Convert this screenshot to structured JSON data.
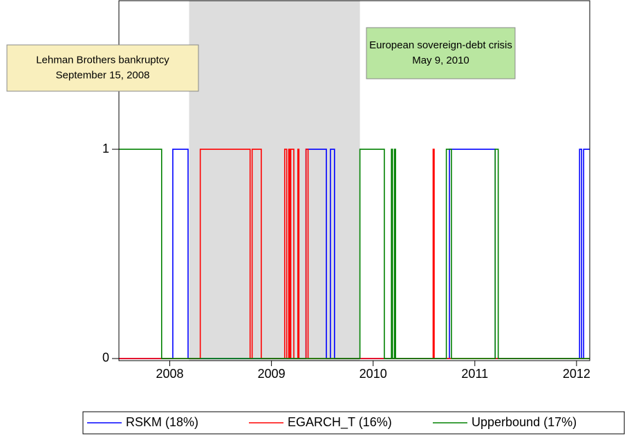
{
  "chart_data": {
    "type": "step",
    "xlim": [
      2008.0,
      2012.63
    ],
    "ylim": [
      -0.01,
      1.71
    ],
    "xticks": [
      {
        "value": 2008.5,
        "label": "2008"
      },
      {
        "value": 2009.5,
        "label": "2009"
      },
      {
        "value": 2010.5,
        "label": "2010"
      },
      {
        "value": 2011.5,
        "label": "2011"
      },
      {
        "value": 2012.5,
        "label": "2012"
      }
    ],
    "yticks": [
      0,
      1
    ],
    "shaded_region": [
      2008.69,
      2010.37
    ],
    "annotations": [
      {
        "lines": [
          "Lehman Brothers bankruptcy",
          "September 15, 2008"
        ],
        "color": "#f9efbd"
      },
      {
        "lines": [
          "European sovereign-debt crisis",
          "May 9, 2010"
        ],
        "color": "#b9e6a0"
      }
    ],
    "legend": "bottom",
    "series": [
      {
        "name": "RSKM (18%)",
        "color": "#0000ff",
        "x": [
          2008.0,
          2008.53,
          2008.68,
          2009.84,
          2010.04,
          2010.08,
          2010.12,
          2011.25,
          2011.7,
          2012.53,
          2012.55,
          2012.57,
          2012.63
        ],
        "values": [
          0,
          1,
          0,
          1,
          0,
          1,
          0,
          1,
          0,
          1,
          0,
          1,
          1
        ]
      },
      {
        "name": "EGARCH_T (16%)",
        "color": "#ff0000",
        "x": [
          2008.0,
          2008.8,
          2009.29,
          2009.31,
          2009.4,
          2009.63,
          2009.65,
          2009.67,
          2009.68,
          2009.69,
          2009.72,
          2009.76,
          2009.77,
          2009.84,
          2009.86,
          2011.09,
          2011.1,
          2012.63
        ],
        "values": [
          0,
          1,
          0,
          1,
          0,
          1,
          0,
          1,
          0,
          1,
          0,
          1,
          0,
          1,
          0,
          1,
          0,
          0
        ]
      },
      {
        "name": "Upperbound (17%)",
        "color": "#008000",
        "x": [
          2008.0,
          2008.42,
          2010.37,
          2010.61,
          2010.68,
          2010.69,
          2010.71,
          2010.72,
          2011.22,
          2011.27,
          2011.7,
          2011.73,
          2012.63
        ],
        "values": [
          1,
          0,
          1,
          0,
          1,
          0,
          1,
          0,
          1,
          0,
          1,
          0,
          0
        ]
      }
    ]
  }
}
